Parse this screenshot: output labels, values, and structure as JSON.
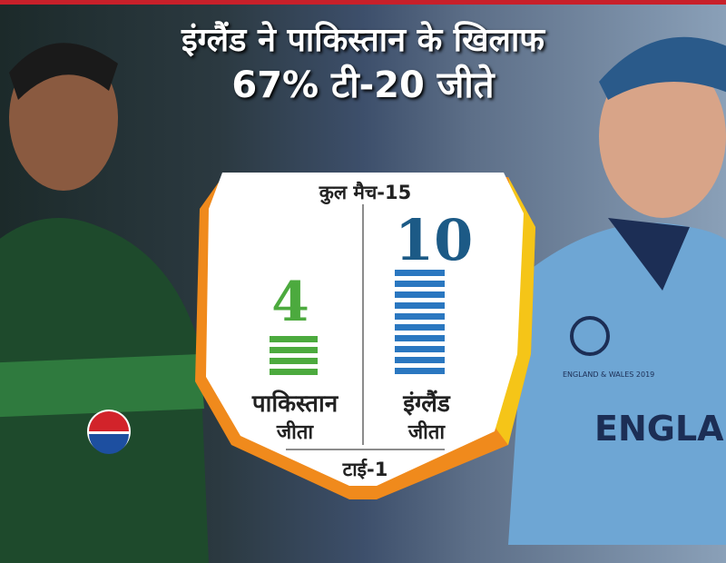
{
  "headline": {
    "line1": "इंग्लैंड ने पाकिस्तान के खिलाफ",
    "line2": "67% टी-20 जीते"
  },
  "card": {
    "total_matches": "कुल मैच-15",
    "pakistan": {
      "wins": "4",
      "label": "पाकिस्तान",
      "sub": "जीता",
      "color": "#4caa3e"
    },
    "england": {
      "wins": "10",
      "label": "इंग्लैंड",
      "sub": "जीता",
      "color": "#2a77c0"
    },
    "tie": "टाई-1"
  },
  "photo": {
    "right_shirt_text": "ENGLAN",
    "badge_text": "ENGLAND & WALES 2019"
  },
  "colors": {
    "border": "#f08a1c",
    "border_right": "#f5c518",
    "top_bar": "#c8202a"
  }
}
